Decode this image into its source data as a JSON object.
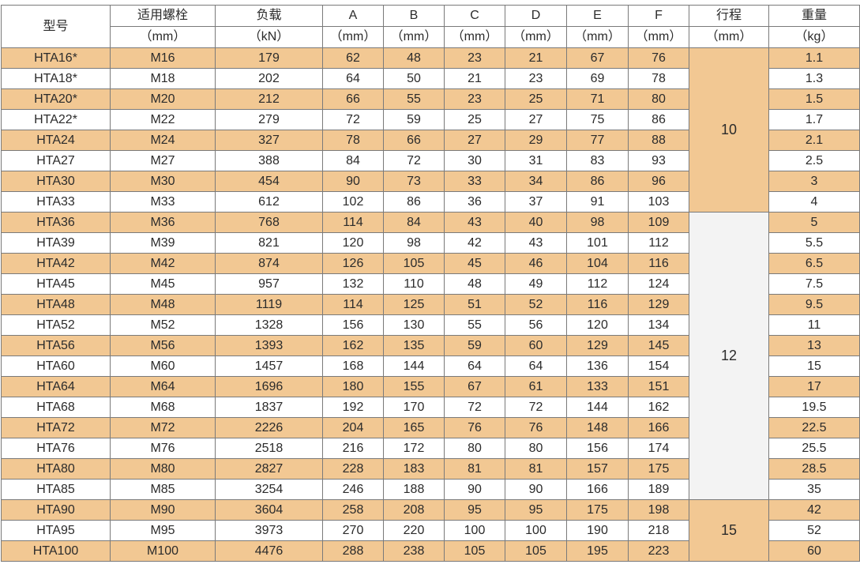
{
  "header": {
    "model": "型号",
    "bolt": "适用螺栓",
    "bolt_unit": "（mm）",
    "load": "负载",
    "load_unit": "（kN）",
    "a": "A",
    "b": "B",
    "c": "C",
    "d": "D",
    "e": "E",
    "f": "F",
    "dim_unit": "（mm）",
    "stroke": "行程",
    "stroke_unit": "（mm）",
    "weight": "重量",
    "weight_unit": "（kg）"
  },
  "rows": [
    [
      "HTA16*",
      "M16",
      "179",
      "62",
      "48",
      "23",
      "21",
      "67",
      "76",
      "1.1"
    ],
    [
      "HTA18*",
      "M18",
      "202",
      "64",
      "50",
      "21",
      "23",
      "69",
      "78",
      "1.3"
    ],
    [
      "HTA20*",
      "M20",
      "212",
      "66",
      "55",
      "23",
      "25",
      "71",
      "80",
      "1.5"
    ],
    [
      "HTA22*",
      "M22",
      "279",
      "72",
      "59",
      "25",
      "27",
      "75",
      "86",
      "1.7"
    ],
    [
      "HTA24",
      "M24",
      "327",
      "78",
      "66",
      "27",
      "29",
      "77",
      "88",
      "2.1"
    ],
    [
      "HTA27",
      "M27",
      "388",
      "84",
      "72",
      "30",
      "31",
      "83",
      "93",
      "2.5"
    ],
    [
      "HTA30",
      "M30",
      "454",
      "90",
      "73",
      "33",
      "34",
      "86",
      "96",
      "3"
    ],
    [
      "HTA33",
      "M33",
      "612",
      "102",
      "86",
      "36",
      "37",
      "91",
      "103",
      "4"
    ],
    [
      "HTA36",
      "M36",
      "768",
      "114",
      "84",
      "43",
      "40",
      "98",
      "109",
      "5"
    ],
    [
      "HTA39",
      "M39",
      "821",
      "120",
      "98",
      "42",
      "43",
      "101",
      "112",
      "5.5"
    ],
    [
      "HTA42",
      "M42",
      "874",
      "126",
      "105",
      "45",
      "46",
      "104",
      "116",
      "6.5"
    ],
    [
      "HTA45",
      "M45",
      "957",
      "132",
      "110",
      "48",
      "49",
      "112",
      "124",
      "7.5"
    ],
    [
      "HTA48",
      "M48",
      "1119",
      "114",
      "125",
      "51",
      "52",
      "116",
      "129",
      "9.5"
    ],
    [
      "HTA52",
      "M52",
      "1328",
      "156",
      "130",
      "55",
      "56",
      "120",
      "134",
      "11"
    ],
    [
      "HTA56",
      "M56",
      "1393",
      "162",
      "135",
      "59",
      "60",
      "129",
      "145",
      "13"
    ],
    [
      "HTA60",
      "M60",
      "1457",
      "168",
      "144",
      "64",
      "64",
      "136",
      "154",
      "15"
    ],
    [
      "HTA64",
      "M64",
      "1696",
      "180",
      "155",
      "67",
      "61",
      "133",
      "151",
      "17"
    ],
    [
      "HTA68",
      "M68",
      "1837",
      "192",
      "170",
      "72",
      "72",
      "144",
      "162",
      "19.5"
    ],
    [
      "HTA72",
      "M72",
      "2226",
      "204",
      "165",
      "76",
      "76",
      "148",
      "166",
      "22.5"
    ],
    [
      "HTA76",
      "M76",
      "2518",
      "216",
      "172",
      "80",
      "80",
      "156",
      "174",
      "25.5"
    ],
    [
      "HTA80",
      "M80",
      "2827",
      "228",
      "183",
      "81",
      "81",
      "157",
      "175",
      "28.5"
    ],
    [
      "HTA85",
      "M85",
      "3254",
      "246",
      "188",
      "90",
      "90",
      "166",
      "189",
      "35"
    ],
    [
      "HTA90",
      "M90",
      "3604",
      "258",
      "208",
      "95",
      "95",
      "175",
      "198",
      "42"
    ],
    [
      "HTA95",
      "M95",
      "3973",
      "270",
      "220",
      "100",
      "100",
      "190",
      "218",
      "52"
    ],
    [
      "HTA100",
      "M100",
      "4476",
      "288",
      "238",
      "105",
      "105",
      "195",
      "223",
      "60"
    ]
  ],
  "stroke_groups": [
    {
      "value": "10",
      "rows": 8
    },
    {
      "value": "12",
      "rows": 14
    },
    {
      "value": "15",
      "rows": 3
    }
  ],
  "colors": {
    "band": "#f2c893",
    "white": "#ffffff",
    "stroke_light": "#f3f3f3",
    "border": "#7a7a7a",
    "text": "#2b2b2b"
  }
}
